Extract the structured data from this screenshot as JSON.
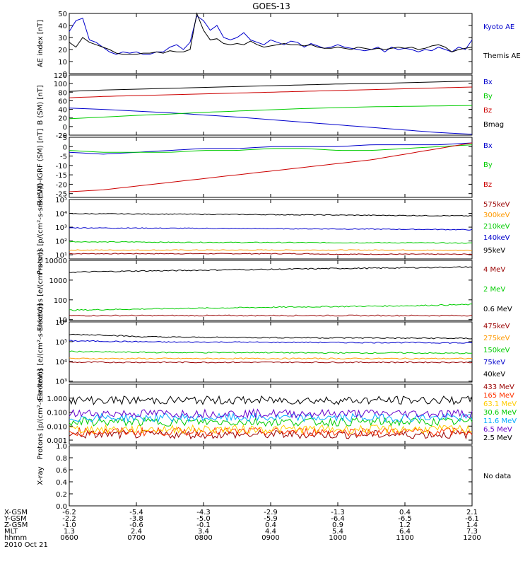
{
  "title": "GOES-13",
  "chart_data": [
    {
      "type": "line",
      "ylabel": "AE index [nT]",
      "ylim": [
        0,
        50
      ],
      "yticks": [
        "50",
        "40",
        "30",
        "20",
        "10",
        "0"
      ],
      "series": [
        {
          "name": "Kyoto AE",
          "color": "#0000cc",
          "values": [
            35,
            44,
            46,
            28,
            26,
            22,
            18,
            16,
            18,
            17,
            18,
            16,
            16,
            18,
            18,
            22,
            24,
            20,
            26,
            48,
            44,
            36,
            40,
            30,
            28,
            30,
            34,
            28,
            26,
            24,
            28,
            26,
            24,
            27,
            26,
            22,
            25,
            23,
            21,
            22,
            24,
            22,
            21,
            20,
            19,
            20,
            22,
            18,
            22,
            20,
            21,
            20,
            18,
            20,
            19,
            22,
            20,
            18,
            22,
            20,
            28
          ]
        },
        {
          "name": "Themis AE",
          "color": "#000000",
          "values": [
            26,
            22,
            30,
            26,
            24,
            22,
            20,
            17,
            16,
            16,
            16,
            17,
            17,
            18,
            17,
            19,
            18,
            18,
            20,
            50,
            36,
            28,
            29,
            25,
            24,
            25,
            24,
            27,
            24,
            22,
            23,
            24,
            25,
            24,
            24,
            23,
            24,
            22,
            21,
            21,
            22,
            21,
            20,
            22,
            21,
            20,
            21,
            20,
            21,
            22,
            21,
            22,
            20,
            21,
            23,
            24,
            22,
            18,
            20,
            21,
            22
          ]
        }
      ]
    },
    {
      "type": "line",
      "ylabel": "B (SM) [nT]",
      "ylim": [
        -20,
        120
      ],
      "yticks": [
        "120",
        "100",
        "80",
        "60",
        "40",
        "20",
        "0",
        "-20"
      ],
      "series": [
        {
          "name": "Bx",
          "color": "#0000cc",
          "values": [
            43,
            40,
            36,
            32,
            27,
            22,
            16,
            10,
            4,
            -2,
            -8,
            -14,
            -18
          ]
        },
        {
          "name": "By",
          "color": "#00cc00",
          "values": [
            18,
            22,
            26,
            29,
            33,
            36,
            39,
            42,
            44,
            46,
            47,
            48,
            49
          ]
        },
        {
          "name": "Bz",
          "color": "#cc0000",
          "values": [
            67,
            70,
            72,
            74,
            76,
            78,
            80,
            82,
            84,
            86,
            88,
            90,
            92
          ]
        },
        {
          "name": "Bmag",
          "color": "#000000",
          "values": [
            82,
            85,
            87,
            89,
            91,
            93,
            95,
            97,
            99,
            100,
            102,
            104,
            106
          ]
        }
      ]
    },
    {
      "type": "line",
      "ylabel": "B (SM)-IGRF (SM) [nT]",
      "ylim": [
        -27,
        5
      ],
      "yticks": [
        "5",
        "0",
        "-5",
        "-10",
        "-15",
        "-20",
        "-25"
      ],
      "series": [
        {
          "name": "Bx",
          "color": "#0000cc",
          "values": [
            -3,
            -4,
            -3,
            -2,
            -1,
            -1,
            0,
            0,
            0,
            1,
            1,
            1,
            2
          ]
        },
        {
          "name": "By",
          "color": "#00cc00",
          "values": [
            -2,
            -3,
            -3,
            -3,
            -2,
            -2,
            -1,
            -1,
            -2,
            -2,
            -1,
            0,
            1
          ]
        },
        {
          "name": "Bz",
          "color": "#cc0000",
          "values": [
            -24,
            -23,
            -21,
            -19,
            -17,
            -15,
            -13,
            -11,
            -9,
            -7,
            -4,
            -1,
            2
          ]
        }
      ]
    },
    {
      "type": "line",
      "ylabel": "Protons [p/(cm²-s-sr-keV)]",
      "log_scale": true,
      "ylim": [
        5,
        100000
      ],
      "yticks": [
        "10⁵",
        "10⁴",
        "10³",
        "10²",
        "10¹"
      ],
      "series": [
        {
          "name": "575keV",
          "color": "#990000",
          "values": [
            12,
            12,
            12,
            12,
            12,
            12,
            12,
            12,
            11,
            11,
            11,
            11,
            11
          ]
        },
        {
          "name": "300keV",
          "color": "#ff9900",
          "values": [
            22,
            22,
            22,
            22,
            22,
            22,
            22,
            22,
            22,
            22,
            22,
            21,
            21
          ]
        },
        {
          "name": "210keV",
          "color": "#00cc00",
          "values": [
            90,
            85,
            85,
            80,
            80,
            78,
            78,
            76,
            75,
            75,
            74,
            72,
            70
          ]
        },
        {
          "name": "140keV",
          "color": "#0000cc",
          "values": [
            900,
            880,
            860,
            840,
            820,
            800,
            780,
            760,
            740,
            720,
            700,
            680,
            650
          ]
        },
        {
          "name": "95keV",
          "color": "#000000",
          "values": [
            9500,
            9200,
            9000,
            8800,
            8500,
            8300,
            8000,
            7800,
            7500,
            7200,
            7000,
            6800,
            6500
          ]
        }
      ]
    },
    {
      "type": "line",
      "ylabel": "Electrons [e/(cm²-s-sr)]",
      "log_scale": true,
      "ylim": [
        9,
        10000
      ],
      "yticks": [
        "10000",
        "1000",
        "100",
        "10"
      ],
      "series": [
        {
          "name": "4 MeV",
          "color": "#990000",
          "values": [
            16,
            16,
            16,
            16,
            16,
            16,
            16,
            16,
            16,
            16,
            16,
            16,
            16
          ]
        },
        {
          "name": "2 MeV",
          "color": "#00cc00",
          "values": [
            30,
            32,
            34,
            36,
            38,
            40,
            42,
            44,
            46,
            48,
            50,
            54,
            58
          ]
        },
        {
          "name": "0.6 MeV",
          "color": "#000000",
          "values": [
            2500,
            2700,
            2900,
            3000,
            3200,
            3400,
            3500,
            3700,
            3900,
            4000,
            4200,
            4400,
            4600
          ]
        }
      ]
    },
    {
      "type": "line",
      "ylabel": "Electrons [e/(cm²-s-sr-keV)]",
      "log_scale": true,
      "ylim": [
        900,
        1000000
      ],
      "yticks": [
        "10⁶",
        "10⁵",
        "10⁴",
        "10³"
      ],
      "series": [
        {
          "name": "475keV",
          "color": "#990000",
          "values": [
            9000,
            9000,
            9000,
            9000,
            9000,
            9000,
            9000,
            9000,
            9000,
            9000,
            9000,
            9000,
            9000
          ]
        },
        {
          "name": "275keV",
          "color": "#ff9900",
          "values": [
            14000,
            14000,
            14000,
            14000,
            14000,
            14000,
            14000,
            14000,
            14000,
            14000,
            14000,
            14000,
            14000
          ]
        },
        {
          "name": "150keV",
          "color": "#00cc00",
          "values": [
            32000,
            30000,
            29000,
            28000,
            28000,
            28000,
            28000,
            27000,
            27000,
            27000,
            27000,
            26000,
            26000
          ]
        },
        {
          "name": "75keV",
          "color": "#0000cc",
          "values": [
            110000,
            105000,
            100000,
            95000,
            95000,
            95000,
            92000,
            92000,
            90000,
            90000,
            90000,
            88000,
            85000
          ]
        },
        {
          "name": "40keV",
          "color": "#000000",
          "values": [
            230000,
            220000,
            180000,
            170000,
            165000,
            165000,
            160000,
            158000,
            155000,
            155000,
            150000,
            150000,
            145000
          ]
        }
      ]
    },
    {
      "type": "line",
      "ylabel": "Protons [p/(cm²-s-sr-keV)]",
      "log_scale": true,
      "ylim": [
        0.0005,
        10
      ],
      "yticks": [
        "1.000",
        "0.100",
        "0.010",
        "0.001"
      ],
      "series": [
        {
          "name": "433 MeV",
          "color": "#990000",
          "values": [
            0.0025,
            0.0025,
            0.0025,
            0.0025,
            0.0025,
            0.0025,
            0.0025,
            0.0025,
            0.0025,
            0.0025,
            0.0025,
            0.0025,
            0.0025
          ]
        },
        {
          "name": "165 MeV",
          "color": "#ff3300",
          "values": [
            0.004,
            0.004,
            0.004,
            0.004,
            0.004,
            0.004,
            0.004,
            0.004,
            0.004,
            0.004,
            0.004,
            0.004,
            0.004
          ]
        },
        {
          "name": "63.1 MeV",
          "color": "#ffcc00",
          "values": [
            0.006,
            0.006,
            0.006,
            0.006,
            0.006,
            0.006,
            0.006,
            0.006,
            0.006,
            0.006,
            0.006,
            0.006,
            0.006
          ]
        },
        {
          "name": "30.6 MeV",
          "color": "#00cc00",
          "values": [
            0.02,
            0.02,
            0.02,
            0.02,
            0.02,
            0.02,
            0.02,
            0.02,
            0.02,
            0.02,
            0.02,
            0.02,
            0.02
          ]
        },
        {
          "name": "11.6 MeV",
          "color": "#00aaff",
          "values": [
            0.04,
            0.04,
            0.04,
            0.04,
            0.04,
            0.04,
            0.04,
            0.04,
            0.04,
            0.04,
            0.04,
            0.04,
            0.04
          ]
        },
        {
          "name": "6.5 MeV",
          "color": "#6600cc",
          "values": [
            0.08,
            0.08,
            0.08,
            0.08,
            0.08,
            0.08,
            0.08,
            0.08,
            0.08,
            0.08,
            0.08,
            0.08,
            0.08
          ]
        },
        {
          "name": "2.5 MeV",
          "color": "#000000",
          "values": [
            0.7,
            0.7,
            0.7,
            0.7,
            0.7,
            0.7,
            0.7,
            0.7,
            0.7,
            0.7,
            0.7,
            0.7,
            0.7
          ]
        }
      ]
    },
    {
      "type": "line",
      "ylabel": "X-ray",
      "ylim": [
        0,
        1
      ],
      "yticks": [
        "1.0",
        "0.8",
        "0.6",
        "0.4",
        "0.2",
        "0.0"
      ],
      "series": [],
      "note": "No data"
    }
  ],
  "x_axis": {
    "rows": [
      {
        "label": "X-GSM",
        "values": [
          "-6.2",
          "-5.4",
          "-4.3",
          "-2.9",
          "-1.3",
          "0.4",
          "2.1"
        ]
      },
      {
        "label": "Y-GSM",
        "values": [
          "-2.2",
          "-3.8",
          "-5.0",
          "-5.9",
          "-6.4",
          "-6.5",
          "-6.1"
        ]
      },
      {
        "label": "Z-GSM",
        "values": [
          "-1.0",
          "-0.6",
          "-0.1",
          "0.4",
          "0.9",
          "1.2",
          "1.4"
        ]
      },
      {
        "label": "MLT",
        "values": [
          "1.3",
          "2.4",
          "3.4",
          "4.4",
          "5.4",
          "6.4",
          "7.3"
        ]
      },
      {
        "label": "hhmm",
        "values": [
          "0600",
          "0700",
          "0800",
          "0900",
          "1000",
          "1100",
          "1200"
        ]
      }
    ],
    "date": "2010 Oct 21"
  }
}
